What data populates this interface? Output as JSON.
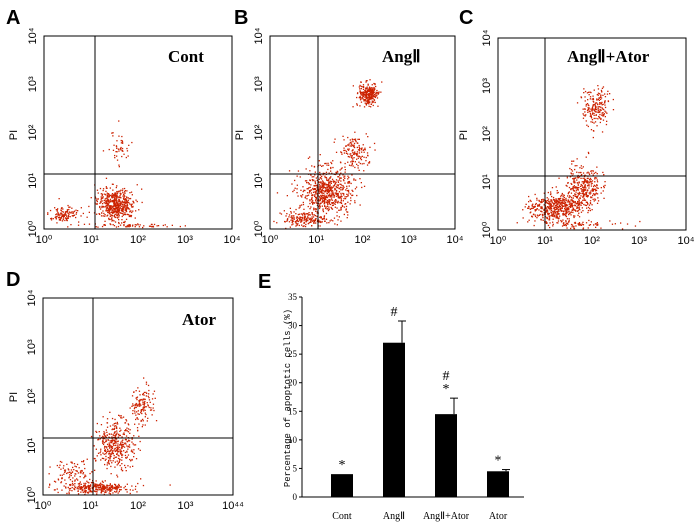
{
  "panels": [
    {
      "letter": "A",
      "condition": "Cont",
      "y_axis_label": "PI",
      "x_ticks": [
        "10⁰",
        "10¹",
        "10²",
        "10³",
        "10⁴"
      ],
      "y_ticks": [
        "10⁰",
        "10¹",
        "10²",
        "10³",
        "10⁴"
      ]
    },
    {
      "letter": "B",
      "condition": "AngⅡ",
      "y_axis_label": "PI",
      "x_ticks": [
        "10⁰",
        "10¹",
        "10²",
        "10³",
        "10⁴"
      ],
      "y_ticks": [
        "10⁰",
        "10¹",
        "10²",
        "10³",
        "10⁴"
      ]
    },
    {
      "letter": "C",
      "condition": "AngⅡ+Ator",
      "y_axis_label": "PI",
      "x_ticks": [
        "10⁰",
        "10¹",
        "10²",
        "10³",
        "10⁴"
      ],
      "y_ticks": [
        "10⁰",
        "10¹",
        "10²",
        "10³",
        "10⁴"
      ]
    },
    {
      "letter": "D",
      "condition": "Ator",
      "y_axis_label": "PI",
      "x_ticks": [
        "10⁰",
        "10¹",
        "10²",
        "10³",
        "10⁴⁴"
      ],
      "y_ticks": [
        "10⁰",
        "10¹",
        "10²",
        "10³",
        "10⁴"
      ]
    }
  ],
  "bar_panel_letter": "E",
  "chart_data": {
    "type": "bar",
    "title": "",
    "xlabel": "",
    "ylabel": "Percentage of apoptotic cells (%)",
    "categories": [
      "Cont",
      "AngⅡ",
      "AngⅡ+Ator",
      "Ator"
    ],
    "values": [
      4,
      27,
      14.5,
      4.5
    ],
    "errors": [
      0,
      3.8,
      2.8,
      0.3
    ],
    "annotations": [
      "*",
      "#",
      "#\n*",
      "*"
    ],
    "yticks": [
      0,
      5,
      10,
      15,
      20,
      25,
      30,
      35
    ],
    "ylim": [
      0,
      35
    ],
    "bar_color": "#000000"
  },
  "colors": {
    "dots": "#cc2200",
    "frame": "#000000"
  }
}
